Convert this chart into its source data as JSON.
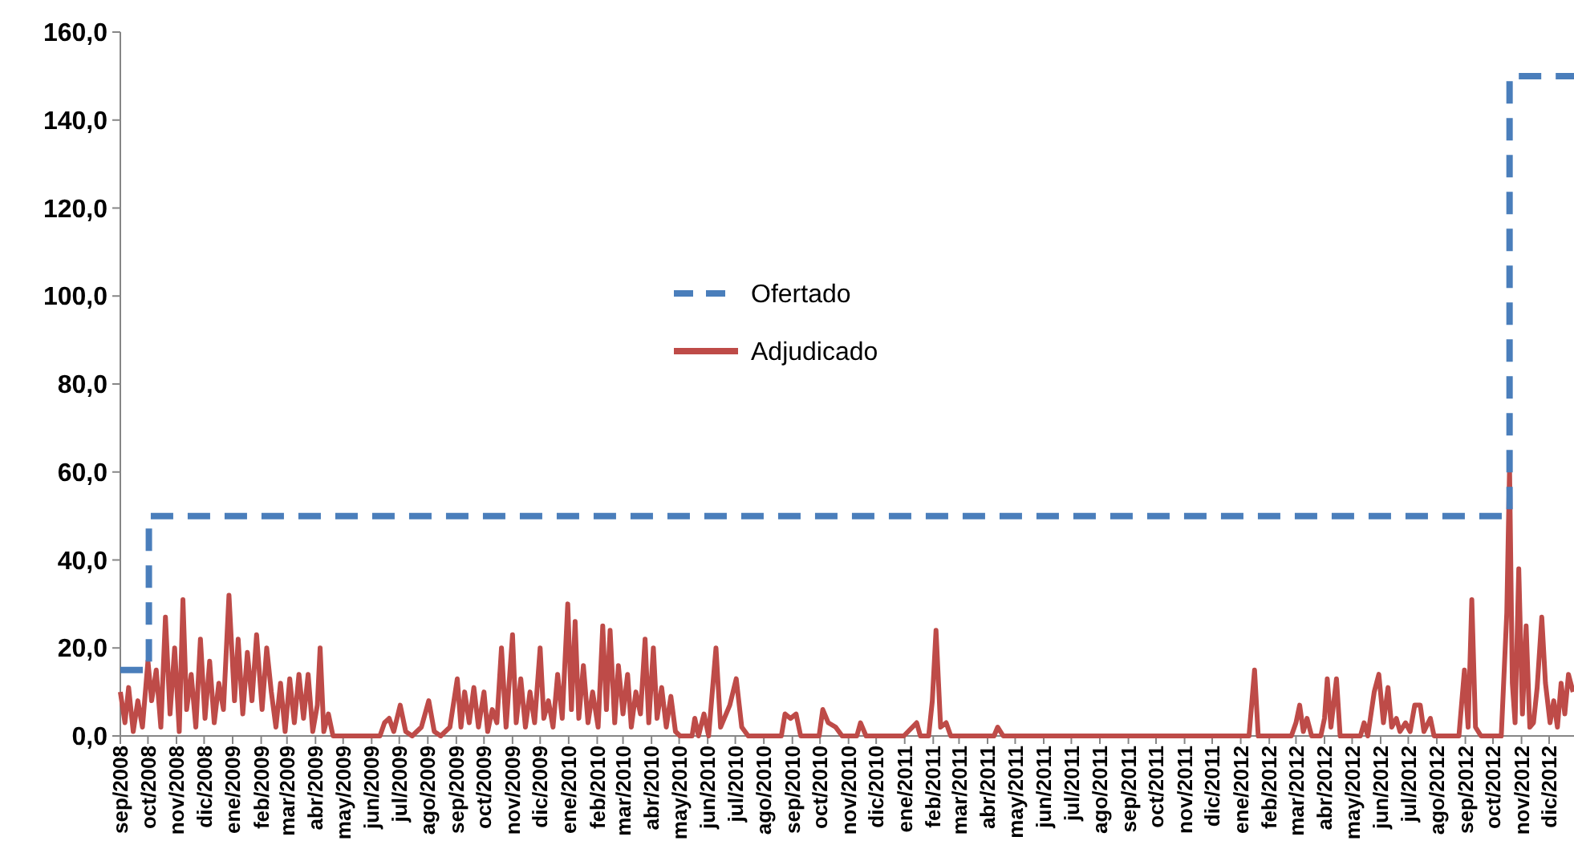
{
  "chart_data": {
    "type": "line",
    "xlim": [
      "2008-09-01",
      "2012-12-28"
    ],
    "ylim": [
      0,
      160
    ],
    "yticks": [
      {
        "value": 0,
        "label": "0,0"
      },
      {
        "value": 20,
        "label": "20,0"
      },
      {
        "value": 40,
        "label": "40,0"
      },
      {
        "value": 60,
        "label": "60,0"
      },
      {
        "value": 80,
        "label": "80,0"
      },
      {
        "value": 100,
        "label": "100,0"
      },
      {
        "value": 120,
        "label": "120,0"
      },
      {
        "value": 140,
        "label": "140,0"
      },
      {
        "value": 160,
        "label": "160,0"
      }
    ],
    "xticks": [
      {
        "value": "2008-09-01",
        "label": "sep/2008"
      },
      {
        "value": "2008-10-01",
        "label": "oct/2008"
      },
      {
        "value": "2008-11-01",
        "label": "nov/2008"
      },
      {
        "value": "2008-12-01",
        "label": "dic/2008"
      },
      {
        "value": "2009-01-01",
        "label": "ene/2009"
      },
      {
        "value": "2009-02-01",
        "label": "feb/2009"
      },
      {
        "value": "2009-03-01",
        "label": "mar/2009"
      },
      {
        "value": "2009-04-01",
        "label": "abr/2009"
      },
      {
        "value": "2009-05-01",
        "label": "may/2009"
      },
      {
        "value": "2009-06-01",
        "label": "jun/2009"
      },
      {
        "value": "2009-07-01",
        "label": "jul/2009"
      },
      {
        "value": "2009-08-01",
        "label": "ago/2009"
      },
      {
        "value": "2009-09-01",
        "label": "sep/2009"
      },
      {
        "value": "2009-10-01",
        "label": "oct/2009"
      },
      {
        "value": "2009-11-01",
        "label": "nov/2009"
      },
      {
        "value": "2009-12-01",
        "label": "dic/2009"
      },
      {
        "value": "2010-01-01",
        "label": "ene/2010"
      },
      {
        "value": "2010-02-01",
        "label": "feb/2010"
      },
      {
        "value": "2010-03-01",
        "label": "mar/2010"
      },
      {
        "value": "2010-04-01",
        "label": "abr/2010"
      },
      {
        "value": "2010-05-01",
        "label": "may/2010"
      },
      {
        "value": "2010-06-01",
        "label": "jun/2010"
      },
      {
        "value": "2010-07-01",
        "label": "jul/2010"
      },
      {
        "value": "2010-08-01",
        "label": "ago/2010"
      },
      {
        "value": "2010-09-01",
        "label": "sep/2010"
      },
      {
        "value": "2010-10-01",
        "label": "oct/2010"
      },
      {
        "value": "2010-11-01",
        "label": "nov/2010"
      },
      {
        "value": "2010-12-01",
        "label": "dic/2010"
      },
      {
        "value": "2011-01-01",
        "label": "ene/2011"
      },
      {
        "value": "2011-02-01",
        "label": "feb/2011"
      },
      {
        "value": "2011-03-01",
        "label": "mar/2011"
      },
      {
        "value": "2011-04-01",
        "label": "abr/2011"
      },
      {
        "value": "2011-05-01",
        "label": "may/2011"
      },
      {
        "value": "2011-06-01",
        "label": "jun/2011"
      },
      {
        "value": "2011-07-01",
        "label": "jul/2011"
      },
      {
        "value": "2011-08-01",
        "label": "ago/2011"
      },
      {
        "value": "2011-09-01",
        "label": "sep/2011"
      },
      {
        "value": "2011-10-01",
        "label": "oct/2011"
      },
      {
        "value": "2011-11-01",
        "label": "nov/2011"
      },
      {
        "value": "2011-12-01",
        "label": "dic/2011"
      },
      {
        "value": "2012-01-01",
        "label": "ene/2012"
      },
      {
        "value": "2012-02-01",
        "label": "feb/2012"
      },
      {
        "value": "2012-03-01",
        "label": "mar/2012"
      },
      {
        "value": "2012-04-01",
        "label": "abr/2012"
      },
      {
        "value": "2012-05-01",
        "label": "may/2012"
      },
      {
        "value": "2012-06-01",
        "label": "jun/2012"
      },
      {
        "value": "2012-07-01",
        "label": "jul/2012"
      },
      {
        "value": "2012-08-01",
        "label": "ago/2012"
      },
      {
        "value": "2012-09-01",
        "label": "sep/2012"
      },
      {
        "value": "2012-10-01",
        "label": "oct/2012"
      },
      {
        "value": "2012-11-01",
        "label": "nov/2012"
      },
      {
        "value": "2012-12-01",
        "label": "dic/2012"
      }
    ],
    "legend": "top",
    "series": [
      {
        "name": "Ofertado",
        "type": "step",
        "color": "#4a7ebb",
        "line_style": "dashed",
        "x": [
          "2008-09-01",
          "2008-10-02",
          "2012-10-19",
          "2012-12-28"
        ],
        "values": [
          15,
          50,
          150,
          150
        ]
      },
      {
        "name": "Adjudicado",
        "color": "#be4b48",
        "line_style": "solid",
        "x": [
          "2008-09-01",
          "2008-09-06",
          "2008-09-10",
          "2008-09-15",
          "2008-09-20",
          "2008-09-25",
          "2008-10-01",
          "2008-10-05",
          "2008-10-10",
          "2008-10-15",
          "2008-10-20",
          "2008-10-25",
          "2008-10-30",
          "2008-11-04",
          "2008-11-08",
          "2008-11-12",
          "2008-11-17",
          "2008-11-22",
          "2008-11-27",
          "2008-12-02",
          "2008-12-07",
          "2008-12-12",
          "2008-12-17",
          "2008-12-22",
          "2008-12-28",
          "2009-01-03",
          "2009-01-07",
          "2009-01-12",
          "2009-01-17",
          "2009-01-22",
          "2009-01-27",
          "2009-02-02",
          "2009-02-07",
          "2009-02-12",
          "2009-02-17",
          "2009-02-22",
          "2009-02-27",
          "2009-03-04",
          "2009-03-09",
          "2009-03-14",
          "2009-03-19",
          "2009-03-24",
          "2009-03-29",
          "2009-04-03",
          "2009-04-06",
          "2009-04-10",
          "2009-04-15",
          "2009-04-20",
          "2009-06-10",
          "2009-06-15",
          "2009-06-20",
          "2009-06-25",
          "2009-07-02",
          "2009-07-08",
          "2009-07-15",
          "2009-07-25",
          "2009-08-02",
          "2009-08-08",
          "2009-08-15",
          "2009-08-25",
          "2009-09-02",
          "2009-09-06",
          "2009-09-10",
          "2009-09-15",
          "2009-09-20",
          "2009-09-25",
          "2009-10-01",
          "2009-10-05",
          "2009-10-10",
          "2009-10-15",
          "2009-10-20",
          "2009-10-25",
          "2009-11-01",
          "2009-11-05",
          "2009-11-10",
          "2009-11-15",
          "2009-11-20",
          "2009-11-25",
          "2009-12-01",
          "2009-12-05",
          "2009-12-10",
          "2009-12-15",
          "2009-12-20",
          "2009-12-25",
          "2009-12-31",
          "2010-01-04",
          "2010-01-08",
          "2010-01-12",
          "2010-01-17",
          "2010-01-22",
          "2010-01-27",
          "2010-02-02",
          "2010-02-07",
          "2010-02-11",
          "2010-02-15",
          "2010-02-20",
          "2010-02-24",
          "2010-03-01",
          "2010-03-06",
          "2010-03-10",
          "2010-03-15",
          "2010-03-20",
          "2010-03-25",
          "2010-03-29",
          "2010-04-03",
          "2010-04-07",
          "2010-04-12",
          "2010-04-17",
          "2010-04-22",
          "2010-04-27",
          "2010-05-02",
          "2010-05-15",
          "2010-05-18",
          "2010-05-22",
          "2010-05-28",
          "2010-06-02",
          "2010-06-10",
          "2010-06-15",
          "2010-06-25",
          "2010-07-02",
          "2010-07-08",
          "2010-07-15",
          "2010-08-20",
          "2010-08-24",
          "2010-08-30",
          "2010-09-05",
          "2010-09-10",
          "2010-09-30",
          "2010-10-04",
          "2010-10-10",
          "2010-10-18",
          "2010-10-25",
          "2010-11-10",
          "2010-11-14",
          "2010-11-20",
          "2010-12-31",
          "2011-01-14",
          "2011-01-18",
          "2011-01-27",
          "2011-01-31",
          "2011-02-04",
          "2011-02-09",
          "2011-02-15",
          "2011-02-20",
          "2011-04-08",
          "2011-04-12",
          "2011-04-18",
          "2012-01-10",
          "2012-01-16",
          "2012-01-20",
          "2012-02-25",
          "2012-03-01",
          "2012-03-05",
          "2012-03-09",
          "2012-03-13",
          "2012-03-18",
          "2012-03-28",
          "2012-04-01",
          "2012-04-04",
          "2012-04-08",
          "2012-04-14",
          "2012-04-18",
          "2012-05-10",
          "2012-05-14",
          "2012-05-18",
          "2012-05-25",
          "2012-05-30",
          "2012-06-04",
          "2012-06-09",
          "2012-06-13",
          "2012-06-18",
          "2012-06-22",
          "2012-06-28",
          "2012-07-03",
          "2012-07-08",
          "2012-07-14",
          "2012-07-18",
          "2012-07-25",
          "2012-07-29",
          "2012-08-25",
          "2012-08-31",
          "2012-09-04",
          "2012-09-08",
          "2012-09-12",
          "2012-09-18",
          "2012-10-10",
          "2012-10-16",
          "2012-10-19",
          "2012-10-22",
          "2012-10-25",
          "2012-10-29",
          "2012-11-02",
          "2012-11-06",
          "2012-11-10",
          "2012-11-14",
          "2012-11-18",
          "2012-11-23",
          "2012-11-27",
          "2012-12-02",
          "2012-12-06",
          "2012-12-10",
          "2012-12-14",
          "2012-12-18",
          "2012-12-22",
          "2012-12-27"
        ],
        "values": [
          10,
          3,
          11,
          1,
          8,
          2,
          17,
          8,
          15,
          2,
          27,
          5,
          20,
          1,
          31,
          6,
          14,
          2,
          22,
          4,
          17,
          3,
          12,
          6,
          32,
          8,
          22,
          5,
          19,
          8,
          23,
          6,
          20,
          10,
          2,
          12,
          1,
          13,
          3,
          14,
          4,
          14,
          1,
          7,
          20,
          1,
          5,
          0,
          0,
          3,
          4,
          1,
          7,
          1,
          0,
          2,
          8,
          1,
          0,
          2,
          13,
          2,
          10,
          3,
          11,
          2,
          10,
          1,
          6,
          3,
          20,
          2,
          23,
          3,
          13,
          2,
          10,
          3,
          20,
          4,
          8,
          2,
          14,
          4,
          30,
          6,
          26,
          4,
          16,
          3,
          10,
          2,
          25,
          6,
          24,
          3,
          16,
          5,
          14,
          2,
          10,
          5,
          22,
          3,
          20,
          4,
          11,
          2,
          9,
          1,
          0,
          0,
          4,
          0,
          5,
          0,
          20,
          2,
          7,
          13,
          2,
          0,
          0,
          5,
          4,
          5,
          0,
          0,
          6,
          3,
          2,
          0,
          0,
          3,
          0,
          0,
          3,
          0,
          0,
          8,
          24,
          2,
          3,
          0,
          0,
          2,
          0,
          0,
          15,
          0,
          0,
          3,
          7,
          1,
          4,
          0,
          0,
          4,
          13,
          2,
          13,
          0,
          0,
          3,
          0,
          10,
          14,
          3,
          11,
          2,
          4,
          1,
          3,
          1,
          7,
          7,
          1,
          4,
          0,
          0,
          15,
          2,
          31,
          2,
          0,
          0,
          28,
          61,
          12,
          3,
          38,
          5,
          25,
          2,
          3,
          11,
          27,
          12,
          3,
          8,
          2,
          12,
          5,
          14,
          10
        ]
      }
    ]
  }
}
